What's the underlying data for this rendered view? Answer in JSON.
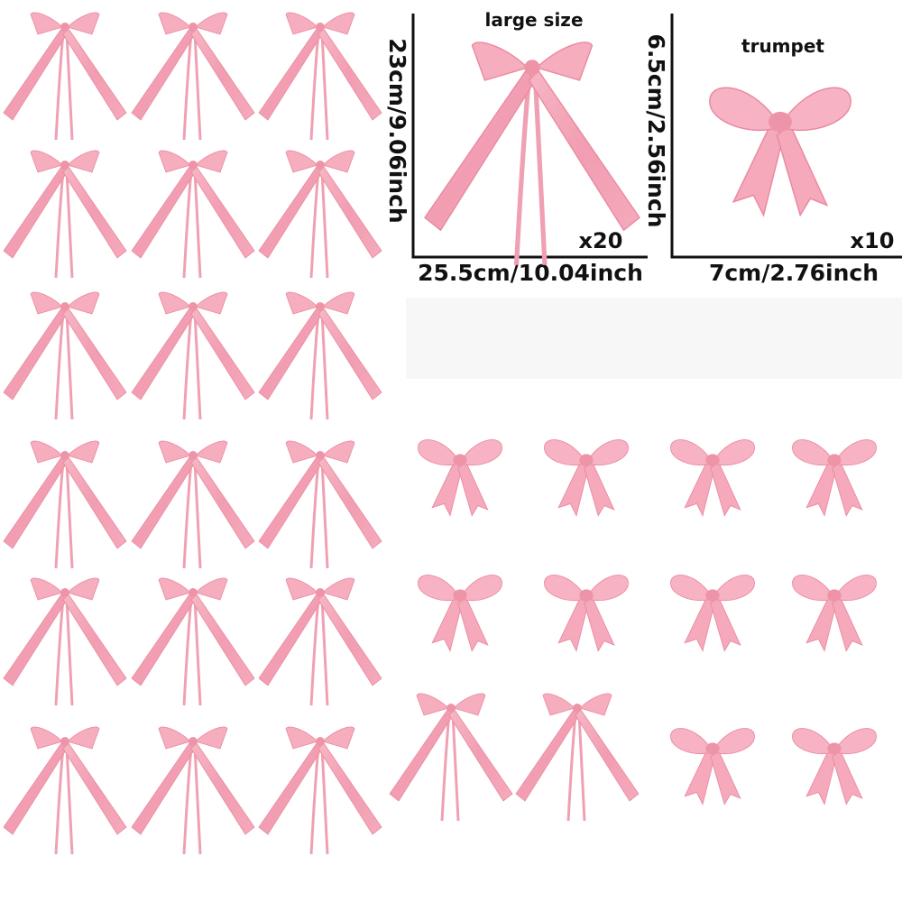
{
  "large_panel": {
    "title": "large size",
    "height": "23cm/9.06inch",
    "width": "25.5cm/10.04inch",
    "count": "x20"
  },
  "trumpet_panel": {
    "title": "trumpet",
    "height": "6.5cm/2.56inch",
    "width": "7cm/2.76inch",
    "count": "x10"
  }
}
